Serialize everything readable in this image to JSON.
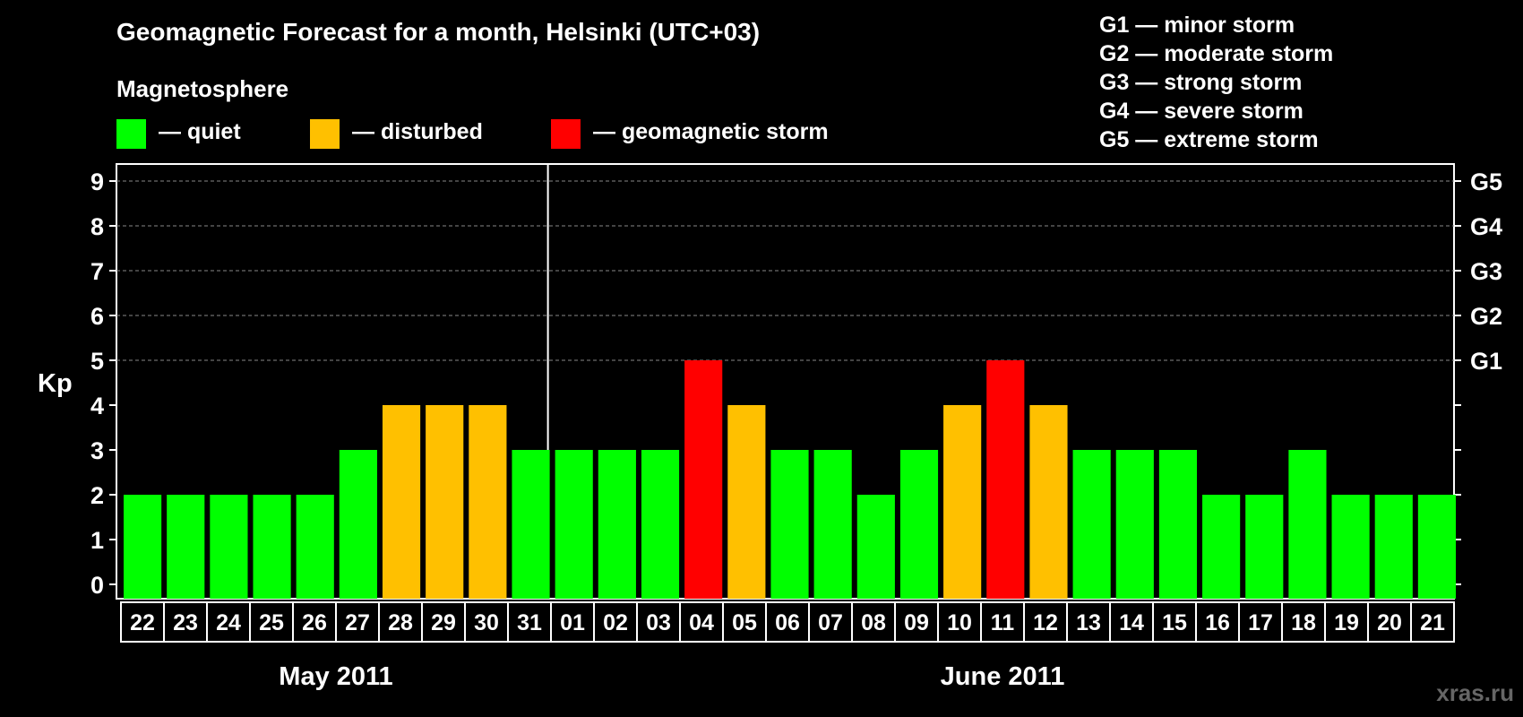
{
  "title": "Geomagnetic Forecast for a month, Helsinki (UTC+03)",
  "section_label": "Magnetosphere",
  "legend": [
    {
      "label": "— quiet",
      "color": "#00ff00"
    },
    {
      "label": "— disturbed",
      "color": "#ffc000"
    },
    {
      "label": "— geomagnetic storm",
      "color": "#ff0000"
    }
  ],
  "g_scale": [
    "G1 — minor storm",
    "G2 — moderate storm",
    "G3 — strong storm",
    "G4 — severe storm",
    "G5 — extreme storm"
  ],
  "watermark": "xras.ru",
  "chart_data": {
    "type": "bar",
    "title": "Geomagnetic Forecast for a month, Helsinki (UTC+03)",
    "ylabel": "Kp",
    "xlabel": "",
    "ylim": [
      0,
      9
    ],
    "yticks": [
      "0",
      "1",
      "2",
      "3",
      "4",
      "5",
      "6",
      "7",
      "8",
      "9"
    ],
    "right_axis_labels": [
      {
        "kp": 5,
        "label": "G1"
      },
      {
        "kp": 6,
        "label": "G2"
      },
      {
        "kp": 7,
        "label": "G3"
      },
      {
        "kp": 8,
        "label": "G4"
      },
      {
        "kp": 9,
        "label": "G5"
      }
    ],
    "categories": [
      "22",
      "23",
      "24",
      "25",
      "26",
      "27",
      "28",
      "29",
      "30",
      "31",
      "01",
      "02",
      "03",
      "04",
      "05",
      "06",
      "07",
      "08",
      "09",
      "10",
      "11",
      "12",
      "13",
      "14",
      "15",
      "16",
      "17",
      "18",
      "19",
      "20",
      "21"
    ],
    "values": [
      2,
      2,
      2,
      2,
      2,
      3,
      4,
      4,
      4,
      3,
      3,
      3,
      3,
      5,
      4,
      3,
      3,
      2,
      3,
      4,
      5,
      4,
      3,
      3,
      3,
      2,
      2,
      3,
      2,
      2,
      2
    ],
    "level_colors": {
      "quiet": "#00ff00",
      "disturbed": "#ffc000",
      "storm": "#ff0000"
    },
    "months": [
      {
        "label": "May 2011",
        "start_index": 0,
        "count": 10
      },
      {
        "label": "June 2011",
        "start_index": 10,
        "count": 21
      }
    ]
  }
}
